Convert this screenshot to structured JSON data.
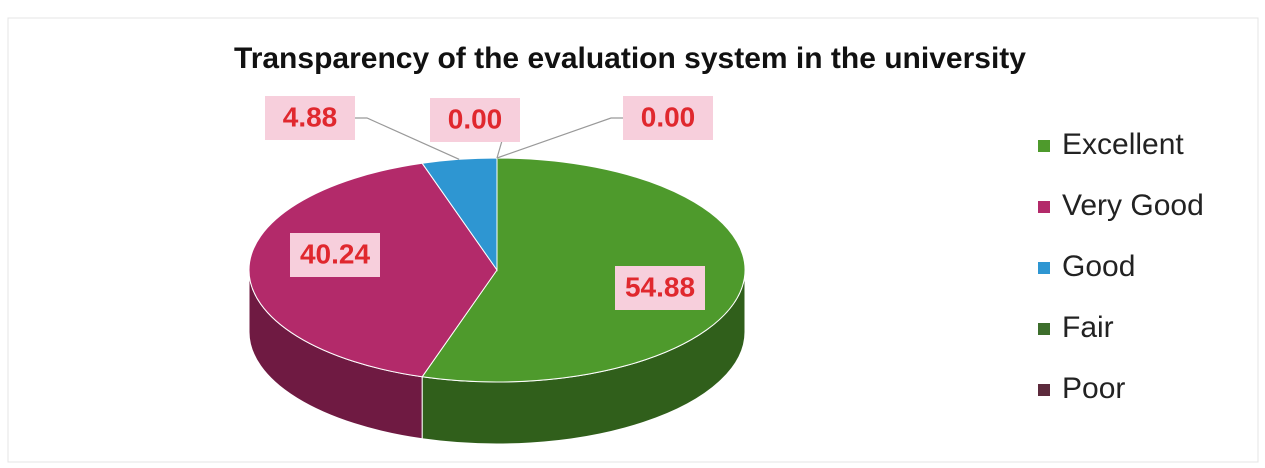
{
  "chart_data": {
    "type": "pie",
    "title": "Transparency of the evaluation system in the university",
    "categories": [
      "Excellent",
      "Very Good",
      "Good",
      "Fair",
      "Poor"
    ],
    "values": [
      54.88,
      40.24,
      4.88,
      0,
      0
    ],
    "value_labels": [
      "54.88",
      "40.24",
      "4.88",
      "0.00",
      "0.00"
    ],
    "colors": [
      "#4e9a2c",
      "#b32a6a",
      "#2e96d2",
      "#3d6e2c",
      "#5c2a3c"
    ],
    "legend": "right"
  }
}
